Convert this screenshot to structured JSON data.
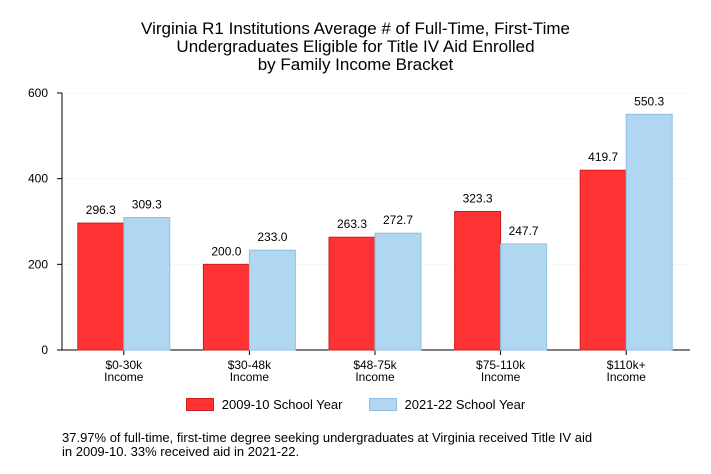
{
  "title_lines": [
    "Virginia R1 Institutions Average # of Full-Time, First-Time",
    "Undergraduates Eligible for Title IV Aid Enrolled",
    "by Family Income Bracket"
  ],
  "footnote_lines": [
    "37.97% of full-time, first-time degree seeking undergraduates at Virginia received Title IV aid",
    "in 2009-10. 33% received aid in 2021-22."
  ],
  "legend_position": "bottom",
  "chart_data": {
    "type": "bar",
    "categories": [
      [
        "$0-30k",
        "Income"
      ],
      [
        "$30-48k",
        "Income"
      ],
      [
        "$48-75k",
        "Income"
      ],
      [
        "$75-110k",
        "Income"
      ],
      [
        "$110k+",
        "Income"
      ]
    ],
    "series": [
      {
        "name": "2009-10 School Year",
        "values": [
          296.3,
          200.0,
          263.3,
          323.3,
          419.7
        ],
        "labels": [
          "296.3",
          "200.0",
          "263.3",
          "323.3",
          "419.7"
        ],
        "color": "#ff3333",
        "stroke": "#cc1f1f"
      },
      {
        "name": "2021-22 School Year",
        "values": [
          309.3,
          233.0,
          272.7,
          247.7,
          550.3
        ],
        "labels": [
          "309.3",
          "233.0",
          "272.7",
          "247.7",
          "550.3"
        ],
        "color": "#b0d7f1",
        "stroke": "#8fc0e3"
      }
    ],
    "ylim": [
      0,
      600
    ],
    "yticks": [
      "0",
      "200",
      "400",
      "600"
    ],
    "grid": true
  }
}
